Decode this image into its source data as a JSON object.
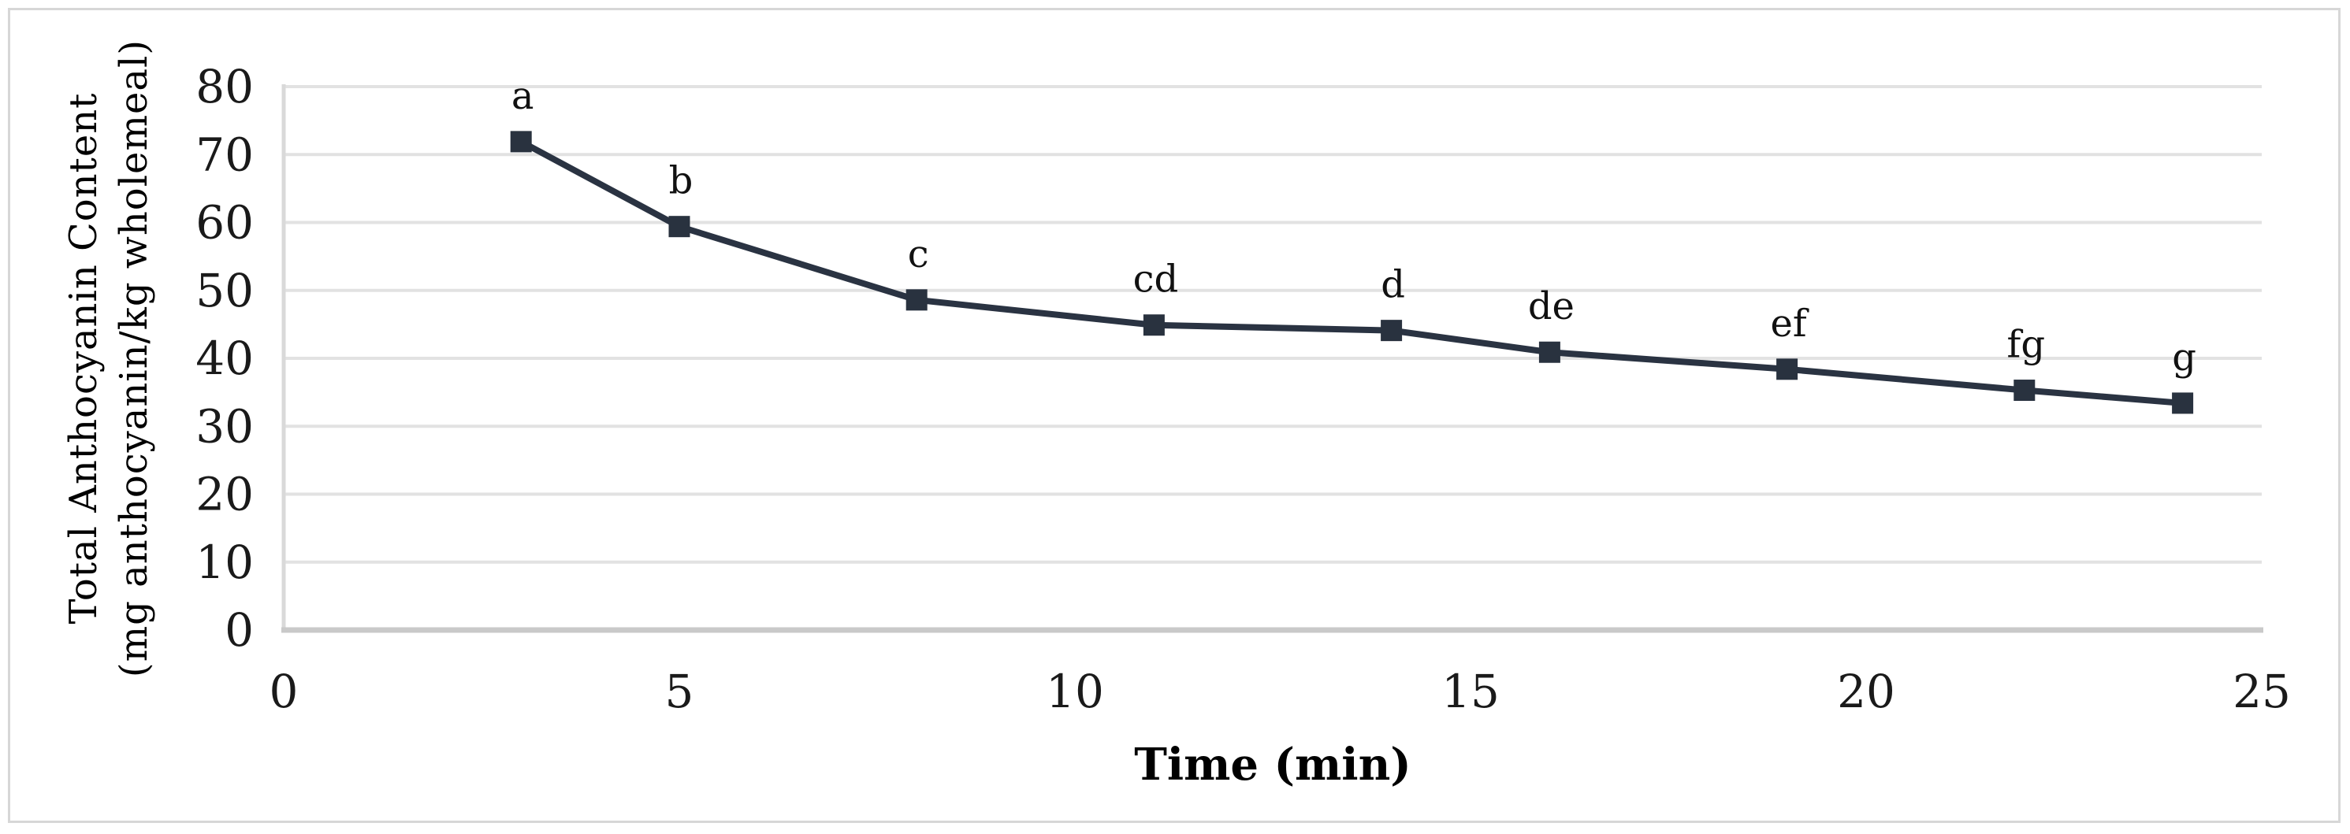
{
  "figure": {
    "background": "#ffffff",
    "border_color": "#d7d7d7"
  },
  "chart_data": {
    "type": "line",
    "title": "",
    "xlabel": "Time (min)",
    "ylabel_line1": "Total Anthocyanin Content",
    "ylabel_line2": "(mg anthocyanin/kg wholemeal)",
    "x": [
      3,
      5,
      8,
      11,
      14,
      16,
      19,
      22,
      24
    ],
    "series": [
      {
        "name": "Total Anthocyanin Content",
        "values": [
          71.9,
          59.4,
          48.6,
          44.9,
          44.1,
          40.9,
          38.4,
          35.3,
          33.4
        ]
      }
    ],
    "point_labels": [
      "a",
      "b",
      "c",
      "cd",
      "d",
      "de",
      "ef",
      "fg",
      "g"
    ],
    "xlim": [
      0,
      25
    ],
    "ylim": [
      0,
      80
    ],
    "x_ticks": [
      0,
      5,
      10,
      15,
      20,
      25
    ],
    "y_ticks": [
      0,
      10,
      20,
      30,
      40,
      50,
      60,
      70,
      80
    ],
    "grid": "horizontal",
    "legend": "none",
    "line_color": "#2a3342",
    "marker_color": "#29323f",
    "gridline_color": "#e2e2e2",
    "axis_line_color": "#c9c9c9",
    "y_axis_line_color": "#d9d9d9",
    "marker": "square"
  }
}
